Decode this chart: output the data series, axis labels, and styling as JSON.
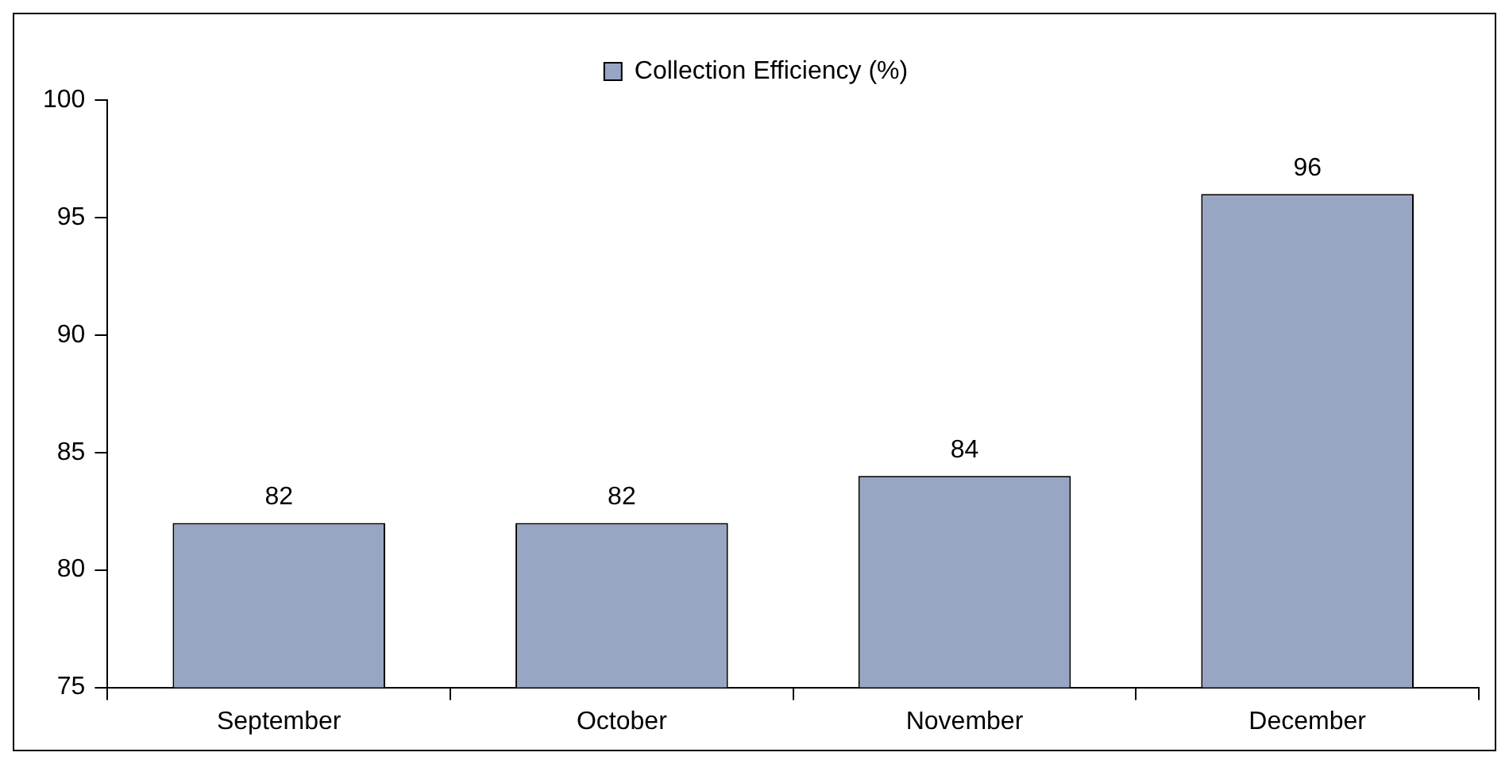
{
  "chart_data": {
    "type": "bar",
    "categories": [
      "September",
      "October",
      "November",
      "December"
    ],
    "series": [
      {
        "name": "Collection Efficiency (%)",
        "color": "#98a6c4",
        "values": [
          82,
          82,
          84,
          96
        ]
      }
    ],
    "ylim": [
      75,
      100
    ],
    "yticks": [
      75,
      80,
      85,
      90,
      95,
      100
    ],
    "grid": false,
    "legend": "top",
    "data_labels": true
  }
}
